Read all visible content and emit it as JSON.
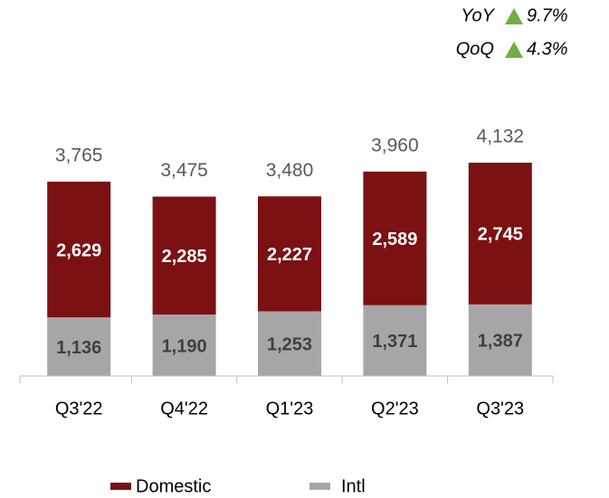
{
  "chart_data": {
    "type": "stacked_bar",
    "categories": [
      "Q3'22",
      "Q4'22",
      "Q1'23",
      "Q2'23",
      "Q3'23"
    ],
    "series": [
      {
        "name": "Intl",
        "color": "#a6a6a6",
        "values": [
          1136,
          1190,
          1253,
          1371,
          1387
        ],
        "value_labels": [
          "1,136",
          "1,190",
          "1,253",
          "1,371",
          "1,387"
        ]
      },
      {
        "name": "Domestic",
        "color": "#7b1113",
        "values": [
          2629,
          2285,
          2227,
          2589,
          2745
        ],
        "value_labels": [
          "2,629",
          "2,285",
          "2,227",
          "2,589",
          "2,745"
        ]
      }
    ],
    "total_labels": [
      "3,765",
      "3,475",
      "3,480",
      "3,960",
      "4,132"
    ],
    "annotations": [
      {
        "label": "YoY",
        "value": "9.7%"
      },
      {
        "label": "QoQ",
        "value": "4.3%"
      }
    ],
    "ylim": [
      0,
      4500
    ],
    "legend": "bottom"
  }
}
